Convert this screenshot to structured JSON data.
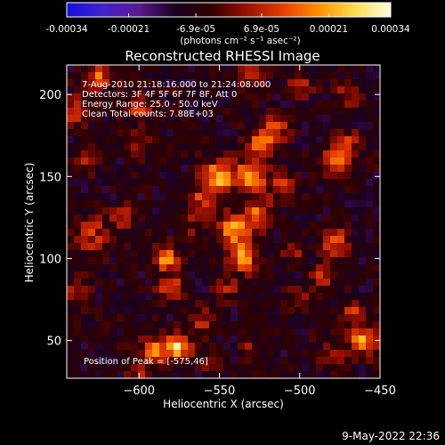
{
  "chart_data": {
    "type": "heatmap",
    "title": "Reconstructed RHESSI Image",
    "xlabel": "Heliocentric X (arcsec)",
    "ylabel": "Heliocentric Y (arcsec)",
    "xlim": [
      -645,
      -450
    ],
    "ylim": [
      27,
      218
    ],
    "xticks": [
      -600,
      -550,
      -500,
      -450
    ],
    "yticks": [
      50,
      100,
      150,
      200
    ],
    "grid": false,
    "colorbar": {
      "range": [
        -0.00034,
        0.00034
      ],
      "ticks": [
        "-0.00034",
        "-0.00021",
        "-6.9e-05",
        "6.9e-05",
        "0.00021",
        "0.00034"
      ],
      "label": "(photons cm⁻² s⁻¹ asec⁻²)",
      "colors": [
        "#1010e0",
        "#4422cc",
        "#5a1a90",
        "#1a0020",
        "#300000",
        "#9a1000",
        "#e63c00",
        "#ff9000",
        "#ffdc50",
        "#ffffe0"
      ]
    },
    "annotations": [
      "7-Aug-2010 21:18:16.000 to 21:24:08.000",
      "Detectors: 3F 4F 5F 6F 7F 8F, Att 0",
      "Energy Range: 25.0 - 50.0 keV",
      "Clean    Total counts: 7.88E+03"
    ],
    "peak_label": "Position of Peak = [-575,46]",
    "peak": {
      "x": -575,
      "y": 46
    },
    "background_level": -8e-05,
    "sources": [
      {
        "x": -575,
        "y": 46,
        "sigma": 5,
        "value": 0.00034
      },
      {
        "x": -590,
        "y": 44,
        "sigma": 6,
        "value": 0.00024
      },
      {
        "x": -560,
        "y": 62,
        "sigma": 6,
        "value": 0.00014
      },
      {
        "x": -600,
        "y": 30,
        "sigma": 5,
        "value": 0.00012
      },
      {
        "x": -582,
        "y": 100,
        "sigma": 5,
        "value": 0.00028
      },
      {
        "x": -580,
        "y": 82,
        "sigma": 6,
        "value": 0.00018
      },
      {
        "x": -630,
        "y": 115,
        "sigma": 8,
        "value": 0.00016
      },
      {
        "x": -640,
        "y": 80,
        "sigma": 6,
        "value": 0.00012
      },
      {
        "x": -610,
        "y": 125,
        "sigma": 5,
        "value": 0.00014
      },
      {
        "x": -625,
        "y": 210,
        "sigma": 6,
        "value": 0.00022
      },
      {
        "x": -640,
        "y": 190,
        "sigma": 6,
        "value": 0.00017
      },
      {
        "x": -600,
        "y": 192,
        "sigma": 5,
        "value": 0.00018
      },
      {
        "x": -632,
        "y": 160,
        "sigma": 5,
        "value": 0.00016
      },
      {
        "x": -600,
        "y": 170,
        "sigma": 5,
        "value": 0.00011
      },
      {
        "x": -550,
        "y": 150,
        "sigma": 7,
        "value": 0.0003
      },
      {
        "x": -530,
        "y": 150,
        "sigma": 7,
        "value": 0.00025
      },
      {
        "x": -525,
        "y": 170,
        "sigma": 6,
        "value": 0.0002
      },
      {
        "x": -560,
        "y": 135,
        "sigma": 6,
        "value": 0.00018
      },
      {
        "x": -540,
        "y": 118,
        "sigma": 7,
        "value": 0.00028
      },
      {
        "x": -535,
        "y": 100,
        "sigma": 6,
        "value": 0.00026
      },
      {
        "x": -545,
        "y": 82,
        "sigma": 5,
        "value": 0.00012
      },
      {
        "x": -525,
        "y": 128,
        "sigma": 6,
        "value": 0.0002
      },
      {
        "x": -570,
        "y": 120,
        "sigma": 5,
        "value": 0.0001
      },
      {
        "x": -510,
        "y": 145,
        "sigma": 6,
        "value": 0.00014
      },
      {
        "x": -515,
        "y": 178,
        "sigma": 6,
        "value": 0.00018
      },
      {
        "x": -530,
        "y": 212,
        "sigma": 5,
        "value": 0.00016
      },
      {
        "x": -500,
        "y": 205,
        "sigma": 5,
        "value": 0.00014
      },
      {
        "x": -470,
        "y": 200,
        "sigma": 5,
        "value": 0.00014
      },
      {
        "x": -478,
        "y": 160,
        "sigma": 6,
        "value": 0.00022
      },
      {
        "x": -470,
        "y": 170,
        "sigma": 5,
        "value": 0.00016
      },
      {
        "x": -478,
        "y": 110,
        "sigma": 6,
        "value": 0.0002
      },
      {
        "x": -485,
        "y": 90,
        "sigma": 5,
        "value": 0.00014
      },
      {
        "x": -505,
        "y": 105,
        "sigma": 5,
        "value": 0.00012
      },
      {
        "x": -500,
        "y": 75,
        "sigma": 5,
        "value": 0.00012
      },
      {
        "x": -468,
        "y": 67,
        "sigma": 5,
        "value": 0.00016
      },
      {
        "x": -460,
        "y": 50,
        "sigma": 6,
        "value": 0.00028
      },
      {
        "x": -480,
        "y": 40,
        "sigma": 5,
        "value": 0.00013
      },
      {
        "x": -530,
        "y": 45,
        "sigma": 5,
        "value": 0.0001
      },
      {
        "x": -555,
        "y": 35,
        "sigma": 4,
        "value": 8e-05
      }
    ]
  },
  "footer": {
    "timestamp": "9-May-2022 22:36"
  }
}
